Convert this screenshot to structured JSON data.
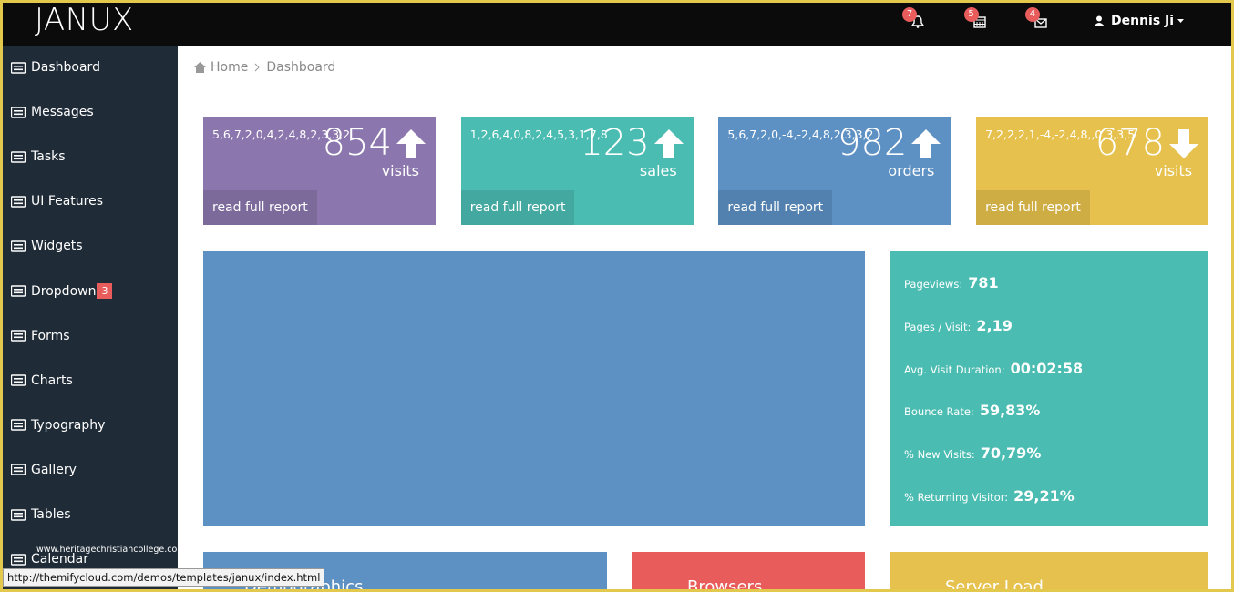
{
  "header": {
    "brand": "JANUX",
    "notifications": [
      {
        "name": "alerts",
        "count": 7
      },
      {
        "name": "calendar",
        "count": 5
      },
      {
        "name": "messages",
        "count": 4
      }
    ],
    "user": "Dennis Ji"
  },
  "sidebar": {
    "items": [
      {
        "label": "Dashboard"
      },
      {
        "label": "Messages"
      },
      {
        "label": "Tasks"
      },
      {
        "label": "UI Features"
      },
      {
        "label": "Widgets"
      },
      {
        "label": "Dropdown",
        "badge": 3
      },
      {
        "label": "Forms"
      },
      {
        "label": "Charts"
      },
      {
        "label": "Typography"
      },
      {
        "label": "Gallery"
      },
      {
        "label": "Tables"
      },
      {
        "label": "Calendar"
      }
    ]
  },
  "breadcrumb": [
    "Home",
    "Dashboard"
  ],
  "stat_boxes": [
    {
      "sparkline": "5,6,7,2,0,4,2,4,8,2,3,3,2",
      "value": 854,
      "label": "visits",
      "link": "read full report",
      "color": "#8b77ad",
      "arrow": "up"
    },
    {
      "sparkline": "1,2,6,4,0,8,2,4,5,3,1,7,8",
      "value": 123,
      "label": "sales",
      "link": "read full report",
      "color": "#4bbcb1",
      "arrow": "up"
    },
    {
      "sparkline": "5,6,7,2,0,-4,-2,4,8,2,3,3,2",
      "value": 982,
      "label": "orders",
      "link": "read full report",
      "color": "#5d90c3",
      "arrow": "up"
    },
    {
      "sparkline": "7,2,2,2,1,-4,-2,4,8,,0,3,3,5",
      "value": 678,
      "label": "visits",
      "link": "read full report",
      "color": "#e6c14d",
      "arrow": "down"
    }
  ],
  "site_stats": [
    {
      "label": "Pageviews:",
      "value": "781"
    },
    {
      "label": "Pages / Visit:",
      "value": "2,19"
    },
    {
      "label": "Avg. Visit Duration:",
      "value": "00:02:58"
    },
    {
      "label": "Bounce Rate:",
      "value": "59,83%"
    },
    {
      "label": "% New Visits:",
      "value": "70,79%"
    },
    {
      "label": "% Returning Visitor:",
      "value": "29,21%"
    }
  ],
  "panels": [
    {
      "title": "Demographics",
      "color": "#5d90c3"
    },
    {
      "title": "Browsers",
      "color": "#e85c5c"
    },
    {
      "title": "Server Load",
      "color": "#e6c14d"
    }
  ],
  "status_bar": "http://themifycloud.com/demos/templates/janux/index.html",
  "watermark": "www.heritagechristiancollege.com"
}
